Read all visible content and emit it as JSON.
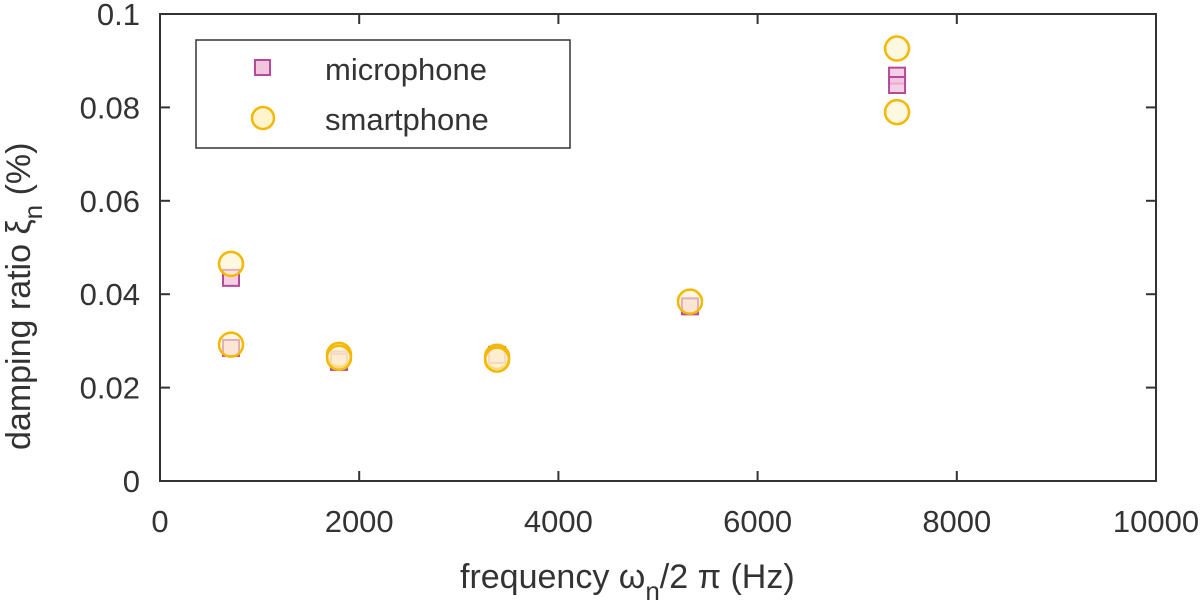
{
  "chart_data": {
    "type": "scatter",
    "xlabel": "frequency    ω",
    "xlabel_sub": "n",
    "xlabel_rest": "/2 π (Hz)",
    "ylabel": "damping ratio     ξ",
    "ylabel_sub": "n",
    "ylabel_rest": " (%)",
    "xlim": [
      0,
      10000
    ],
    "ylim": [
      0,
      0.1
    ],
    "xticks": [
      0,
      2000,
      4000,
      6000,
      8000,
      10000
    ],
    "xtick_labels": [
      "0",
      "2000",
      "4000",
      "6000",
      "8000",
      "10000"
    ],
    "yticks": [
      0,
      0.02,
      0.04,
      0.06,
      0.08,
      0.1
    ],
    "ytick_labels": [
      "0",
      "0.02",
      "0.04",
      "0.06",
      "0.08",
      "0.1"
    ],
    "grid": false,
    "legend_position": "top-left",
    "series": [
      {
        "name": "microphone",
        "marker": "square",
        "stroke": "#b5499b",
        "fill": "#f2c4dd",
        "x": [
          713,
          713,
          1797,
          1797,
          3384,
          5321,
          7400,
          7400
        ],
        "y": [
          0.0435,
          0.0285,
          0.026,
          0.0255,
          0.027,
          0.0374,
          0.0868,
          0.0848
        ]
      },
      {
        "name": "smartphone",
        "marker": "circle",
        "stroke": "#f5b800",
        "fill": "#fff4cc",
        "x": [
          713,
          713,
          1797,
          1797,
          3384,
          3384,
          5321,
          7400,
          7400
        ],
        "y": [
          0.0465,
          0.0292,
          0.027,
          0.0264,
          0.0266,
          0.026,
          0.0384,
          0.0926,
          0.079
        ]
      }
    ]
  }
}
